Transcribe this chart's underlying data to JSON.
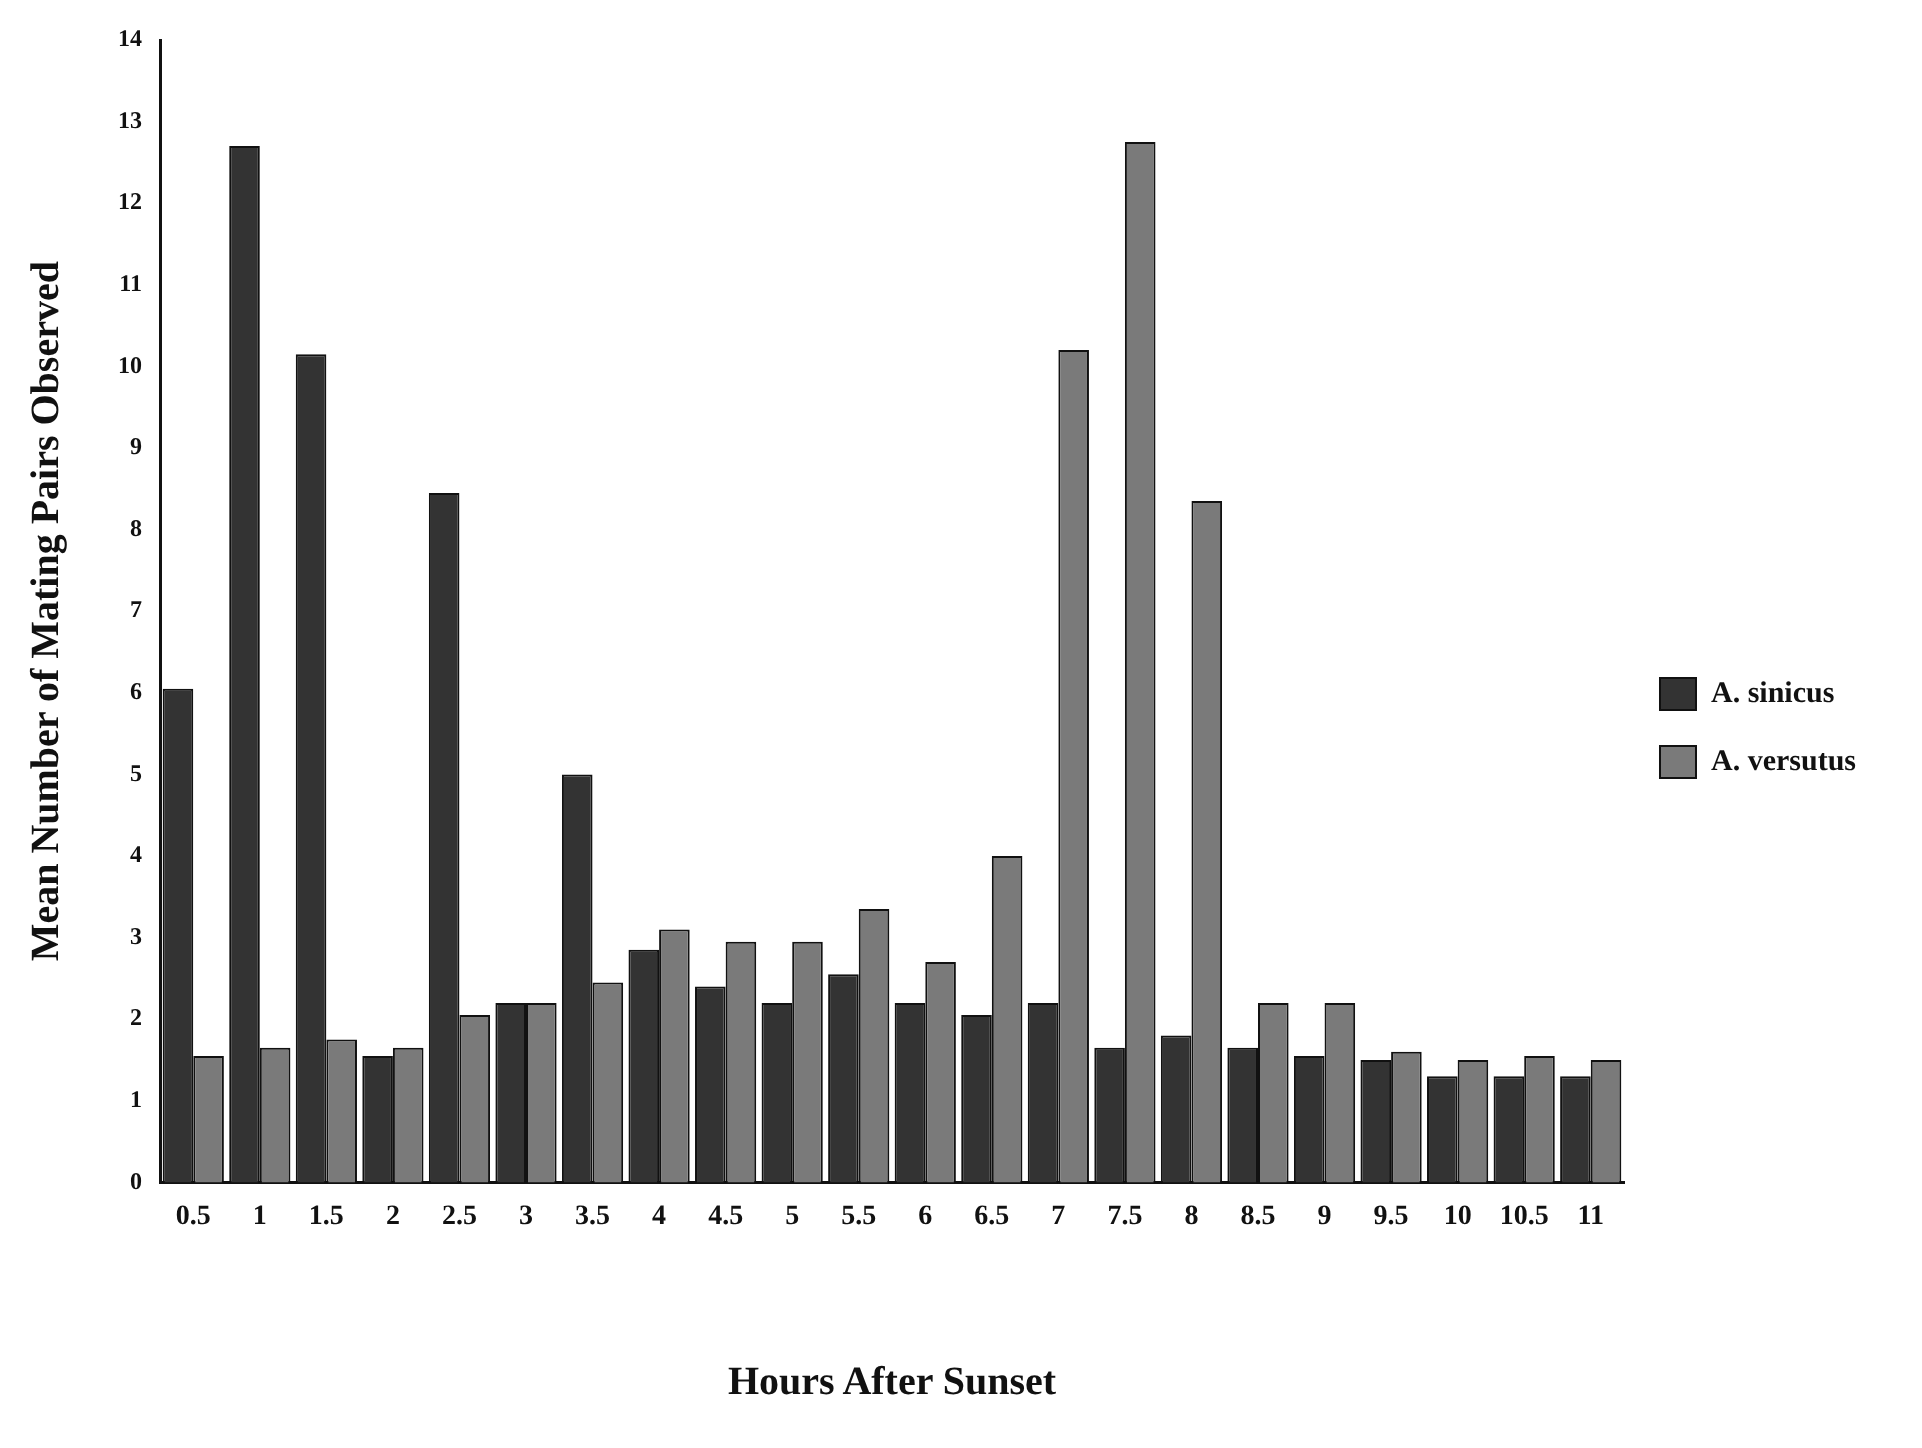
{
  "chart_data": {
    "type": "bar",
    "xlabel": "Hours After Sunset",
    "ylabel": "Mean Number of Mating Pairs Observed",
    "categories": [
      "0.5",
      "1",
      "1.5",
      "2",
      "2.5",
      "3",
      "3.5",
      "4",
      "4.5",
      "5",
      "5.5",
      "6",
      "6.5",
      "7",
      "7.5",
      "8",
      "8.5",
      "9",
      "9.5",
      "10",
      "10.5",
      "11"
    ],
    "series": [
      {
        "name": "A. sinicus",
        "color": "#333333",
        "values": [
          6.05,
          12.7,
          10.15,
          1.55,
          8.45,
          2.2,
          5.0,
          2.85,
          2.4,
          2.2,
          2.55,
          2.2,
          2.05,
          2.2,
          1.65,
          1.8,
          1.65,
          1.55,
          1.5,
          1.3,
          1.3,
          1.3
        ]
      },
      {
        "name": "A. versutus",
        "color": "#7a7a7a",
        "values": [
          1.55,
          1.65,
          1.75,
          1.65,
          2.05,
          2.2,
          2.45,
          3.1,
          2.95,
          2.95,
          3.35,
          2.7,
          4.0,
          10.2,
          12.75,
          8.35,
          2.2,
          2.2,
          1.6,
          1.5,
          1.55,
          1.5
        ]
      }
    ],
    "ylim": [
      0,
      14
    ],
    "yticks": [
      0,
      1,
      2,
      3,
      4,
      5,
      6,
      7,
      8,
      9,
      10,
      11,
      12,
      13,
      14
    ],
    "grid": false,
    "legend": "right"
  }
}
